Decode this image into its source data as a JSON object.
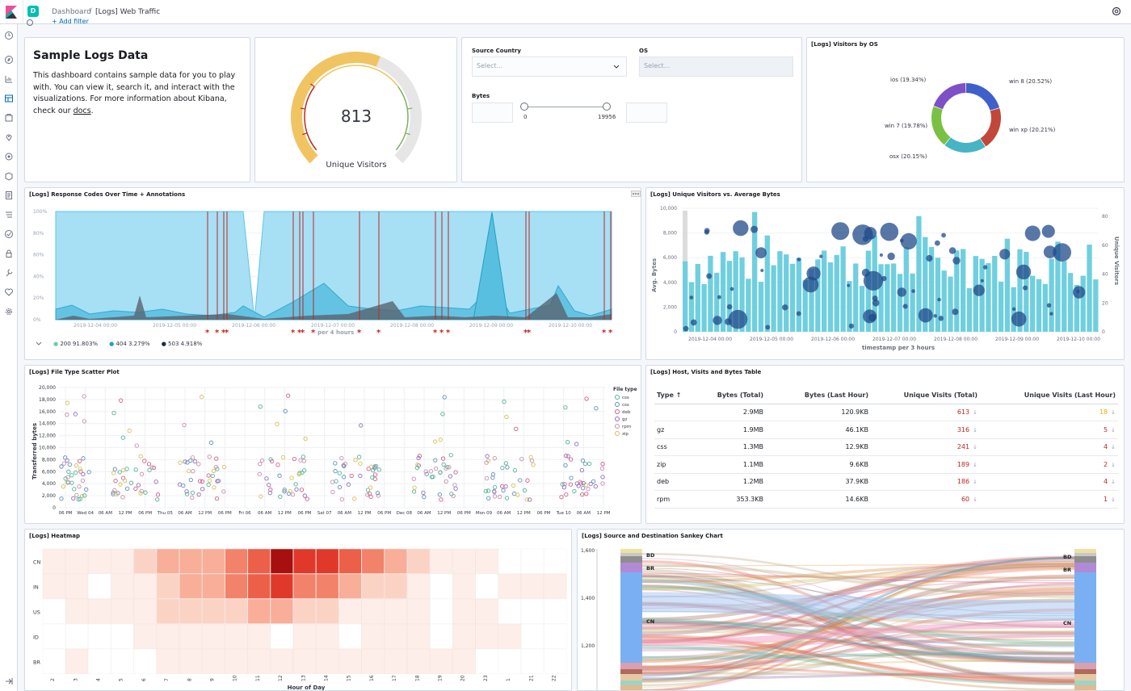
{
  "breadcrumb": {
    "space_initial": "D",
    "dashboard": "Dashboard",
    "separator": "/",
    "current": "[Logs] Web Traffic"
  },
  "add_filter": "+ Add filter",
  "markdown": {
    "title": "Sample Logs Data",
    "body_before": "This dashboard contains sample data for you to play with. You can view it, search it, and interact with the visualizations. For more information about Kibana, check our ",
    "link": "docs",
    "body_after": "."
  },
  "gauge": {
    "value": "813",
    "label": "Unique Visitors",
    "fill_fraction": 0.58,
    "color": "#f1c462"
  },
  "controls": {
    "source_country_label": "Source Country",
    "source_country_placeholder": "Select...",
    "os_label": "OS",
    "os_placeholder": "Select...",
    "bytes_label": "Bytes",
    "bytes_min": "0",
    "bytes_max": "19956"
  },
  "os_chart": {
    "title": "[Logs] Visitors by OS",
    "slices": [
      {
        "label": "win 8 (20.52%)",
        "value": 20.52,
        "color": "#3f5fcb"
      },
      {
        "label": "win xp (20.21%)",
        "value": 20.21,
        "color": "#c1473b"
      },
      {
        "label": "osx (20.15%)",
        "value": 20.15,
        "color": "#46b4c4"
      },
      {
        "label": "win 7 (19.78%)",
        "value": 19.78,
        "color": "#7ac143"
      },
      {
        "label": "ios (19.34%)",
        "value": 19.34,
        "color": "#7e50c8"
      }
    ]
  },
  "response_codes": {
    "title": "[Logs] Response Codes Over Time + Annotations",
    "y_ticks": [
      "100%",
      "80%",
      "60%",
      "40%",
      "20%",
      "0%"
    ],
    "x_ticks": [
      "2019-12-04 00:00",
      "2019-12-05 00:00",
      "2019-12-06 00:00",
      "2019-12-07 00:00",
      "2019-12-08 00:00",
      "2019-12-09 00:00",
      "2019-12-10 00:00"
    ],
    "x_label": "per 4 hours",
    "legend": [
      {
        "label": "200 91.803%",
        "color": "#6dccb1"
      },
      {
        "label": "404 3.279%",
        "color": "#1ea1c5"
      },
      {
        "label": "503 4.918%",
        "color": "#1f2d3a"
      }
    ],
    "annotation_count": 19
  },
  "visitors_bytes": {
    "title": "[Logs] Unique Visitors vs. Average Bytes",
    "y_left_ticks": [
      "10,000",
      "8,000",
      "6,000",
      "4,000",
      "2,000",
      "0"
    ],
    "y_right_ticks": [
      "80",
      "60",
      "40",
      "20",
      "0"
    ],
    "y_left_label": "Avg. Bytes",
    "y_right_label": "Unique Visitors",
    "x_ticks": [
      "2019-12-04 00:00",
      "2019-12-05 00:00",
      "2019-12-06 00:00",
      "2019-12-07 00:00",
      "2019-12-08 00:00",
      "2019-12-09 00:00",
      "2019-12-10 00:00"
    ],
    "x_label": "timestamp per 3 hours"
  },
  "scatter": {
    "title": "[Logs] File Type Scatter Plot",
    "y_ticks": [
      "20,000",
      "18,000",
      "16,000",
      "14,000",
      "12,000",
      "10,000",
      "8,000",
      "6,000",
      "4,000",
      "2,000",
      "0"
    ],
    "y_label": "Transferred bytes",
    "x_ticks": [
      "06 PM",
      "Wed 04",
      "06 AM",
      "12 PM",
      "06 PM",
      "Thu 05",
      "06 AM",
      "12 PM",
      "06 PM",
      "Fri 06",
      "06 AM",
      "12 PM",
      "06 PM",
      "Sat 07",
      "06 AM",
      "12 PM",
      "06 PM",
      "Dec 08",
      "06 AM",
      "12 PM",
      "06 PM",
      "Mon 09",
      "06 AM",
      "12 PM",
      "06 PM",
      "Tue 10",
      "06 AM",
      "12 PM"
    ],
    "legend_title": "File type",
    "legend": [
      {
        "label": "css",
        "color": "#54b399"
      },
      {
        "label": "css",
        "color": "#6092c0"
      },
      {
        "label": "deb",
        "color": "#d36086"
      },
      {
        "label": "gz",
        "color": "#9170b8"
      },
      {
        "label": "rpm",
        "color": "#ca8eae"
      },
      {
        "label": "zip",
        "color": "#d6bf57"
      }
    ]
  },
  "table": {
    "title": "[Logs] Host, Visits and Bytes Table",
    "headers": {
      "type": "Type ↑",
      "bytes_total": "Bytes (Total)",
      "bytes_last": "Bytes (Last Hour)",
      "visits_total": "Unique Visits (Total)",
      "visits_last": "Unique Visits (Last Hour)"
    },
    "rows": [
      {
        "type": "",
        "bytes_total": "2.9MB",
        "bytes_last": "120.9KB",
        "visits_total": "613",
        "visits_last": "18"
      },
      {
        "type": "gz",
        "bytes_total": "1.9MB",
        "bytes_last": "46.1KB",
        "visits_total": "316",
        "visits_last": "5"
      },
      {
        "type": "css",
        "bytes_total": "1.3MB",
        "bytes_last": "12.9KB",
        "visits_total": "241",
        "visits_last": "4"
      },
      {
        "type": "zip",
        "bytes_total": "1.1MB",
        "bytes_last": "9.6KB",
        "visits_total": "189",
        "visits_last": "2"
      },
      {
        "type": "deb",
        "bytes_total": "1.2MB",
        "bytes_last": "37.9KB",
        "visits_total": "186",
        "visits_last": "4"
      },
      {
        "type": "rpm",
        "bytes_total": "353.3KB",
        "bytes_last": "14.6KB",
        "visits_total": "60",
        "visits_last": "1"
      }
    ]
  },
  "heatmap": {
    "title": "[Logs] Heatmap",
    "rows": [
      "CN",
      "IN",
      "US",
      "ID",
      "BR"
    ],
    "cols": [
      "2",
      "3",
      "4",
      "5",
      "6",
      "7",
      "8",
      "9",
      "10",
      "11",
      "12",
      "13",
      "14",
      "15",
      "16",
      "17",
      "18",
      "19",
      "20",
      "23",
      "1",
      "21",
      "22"
    ],
    "x_label": "Hour of Day"
  },
  "sankey": {
    "title": "[Logs] Source and Destination Sankey Chart",
    "y_ticks": [
      "1,600",
      "1,400",
      "1,200"
    ],
    "left_nodes": [
      "BD",
      "BR",
      "CN"
    ],
    "right_nodes": [
      "BD",
      "BR",
      "CN"
    ]
  }
}
